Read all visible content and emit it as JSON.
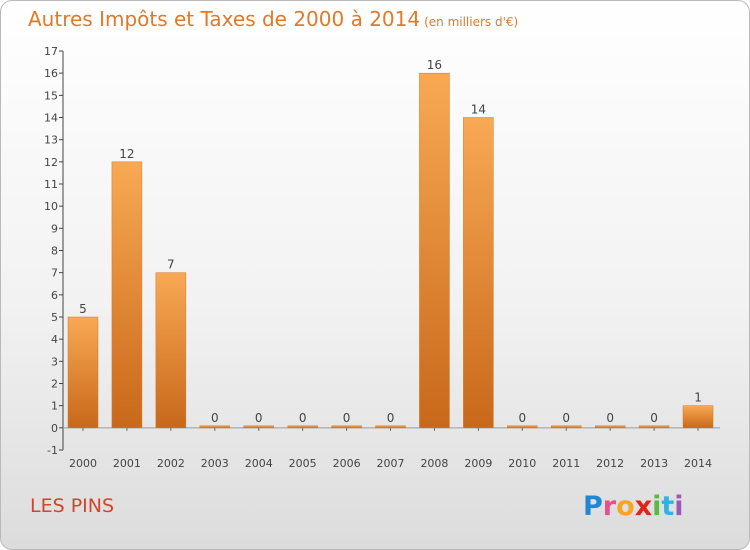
{
  "title": "Autres Impôts et Taxes de 2000 à 2014",
  "subtitle": "(en milliers d'€)",
  "commune": "LES PINS",
  "logo": {
    "text": "Proxiti",
    "colors": [
      "#1e88d6",
      "#e84f8f",
      "#f5a623",
      "#e2231a",
      "#59b947",
      "#2bb4e6",
      "#9b59b6"
    ]
  },
  "colors": {
    "bar_top": "#f8a954",
    "bar_bottom": "#c8681a",
    "title": "#e07a28",
    "commune": "#d2452a"
  },
  "chart_data": {
    "type": "bar",
    "title": "Autres Impôts et Taxes de 2000 à 2014",
    "subtitle": "(en milliers d'€)",
    "categories": [
      "2000",
      "2001",
      "2002",
      "2003",
      "2004",
      "2005",
      "2006",
      "2007",
      "2008",
      "2009",
      "2010",
      "2011",
      "2012",
      "2013",
      "2014"
    ],
    "values": [
      5,
      12,
      7,
      0,
      0,
      0,
      0,
      0,
      16,
      14,
      0,
      0,
      0,
      0,
      1
    ],
    "ylim": [
      -1,
      17
    ],
    "yticks": [
      -1,
      0,
      1,
      2,
      3,
      4,
      5,
      6,
      7,
      8,
      9,
      10,
      11,
      12,
      13,
      14,
      15,
      16,
      17
    ],
    "grid": false
  }
}
